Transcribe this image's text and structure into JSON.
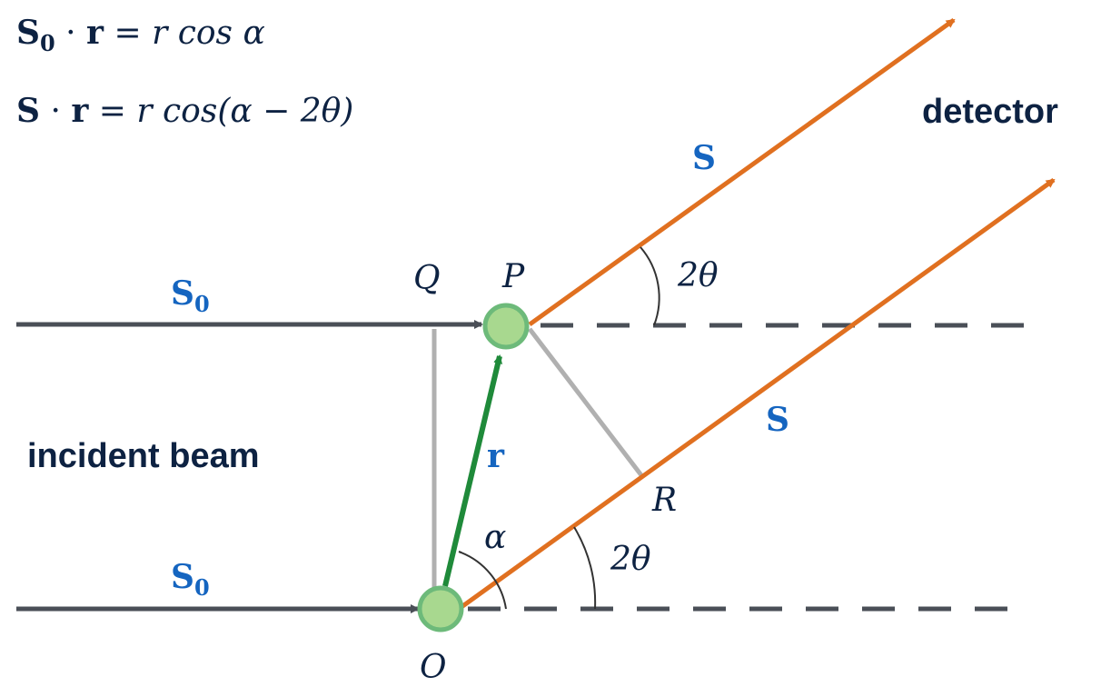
{
  "equations": {
    "eq1": {
      "lhs_vec": "S",
      "lhs_sub": "0",
      "dot": " · ",
      "r": "r",
      "rest": " = r cos α"
    },
    "eq2": {
      "lhs_vec": "S",
      "dot": " · ",
      "r": "r",
      "rest": " = r cos(α − 2θ)"
    }
  },
  "labels": {
    "detector": "detector",
    "incident_beam": "incident beam",
    "S_upper": "S",
    "S_lower": "S",
    "S0_upper": "S",
    "S0_upper_sub": "0",
    "S0_lower": "S",
    "S0_lower_sub": "0",
    "r_vec": "r",
    "point_Q": "Q",
    "point_P": "P",
    "point_R": "R",
    "point_O": "O",
    "angle_alpha": "α",
    "angle_2theta_upper": "2θ",
    "angle_2theta_lower": "2θ"
  },
  "colors": {
    "beam": "#4a4f57",
    "scattered": "#e07020",
    "r_vector": "#1f8a3a",
    "gray_line": "#b0b0b0",
    "atom_fill": "#a8d88f",
    "atom_stroke": "#6dba7a",
    "blue_label": "#1565c0",
    "dark_text": "#0d2242"
  }
}
